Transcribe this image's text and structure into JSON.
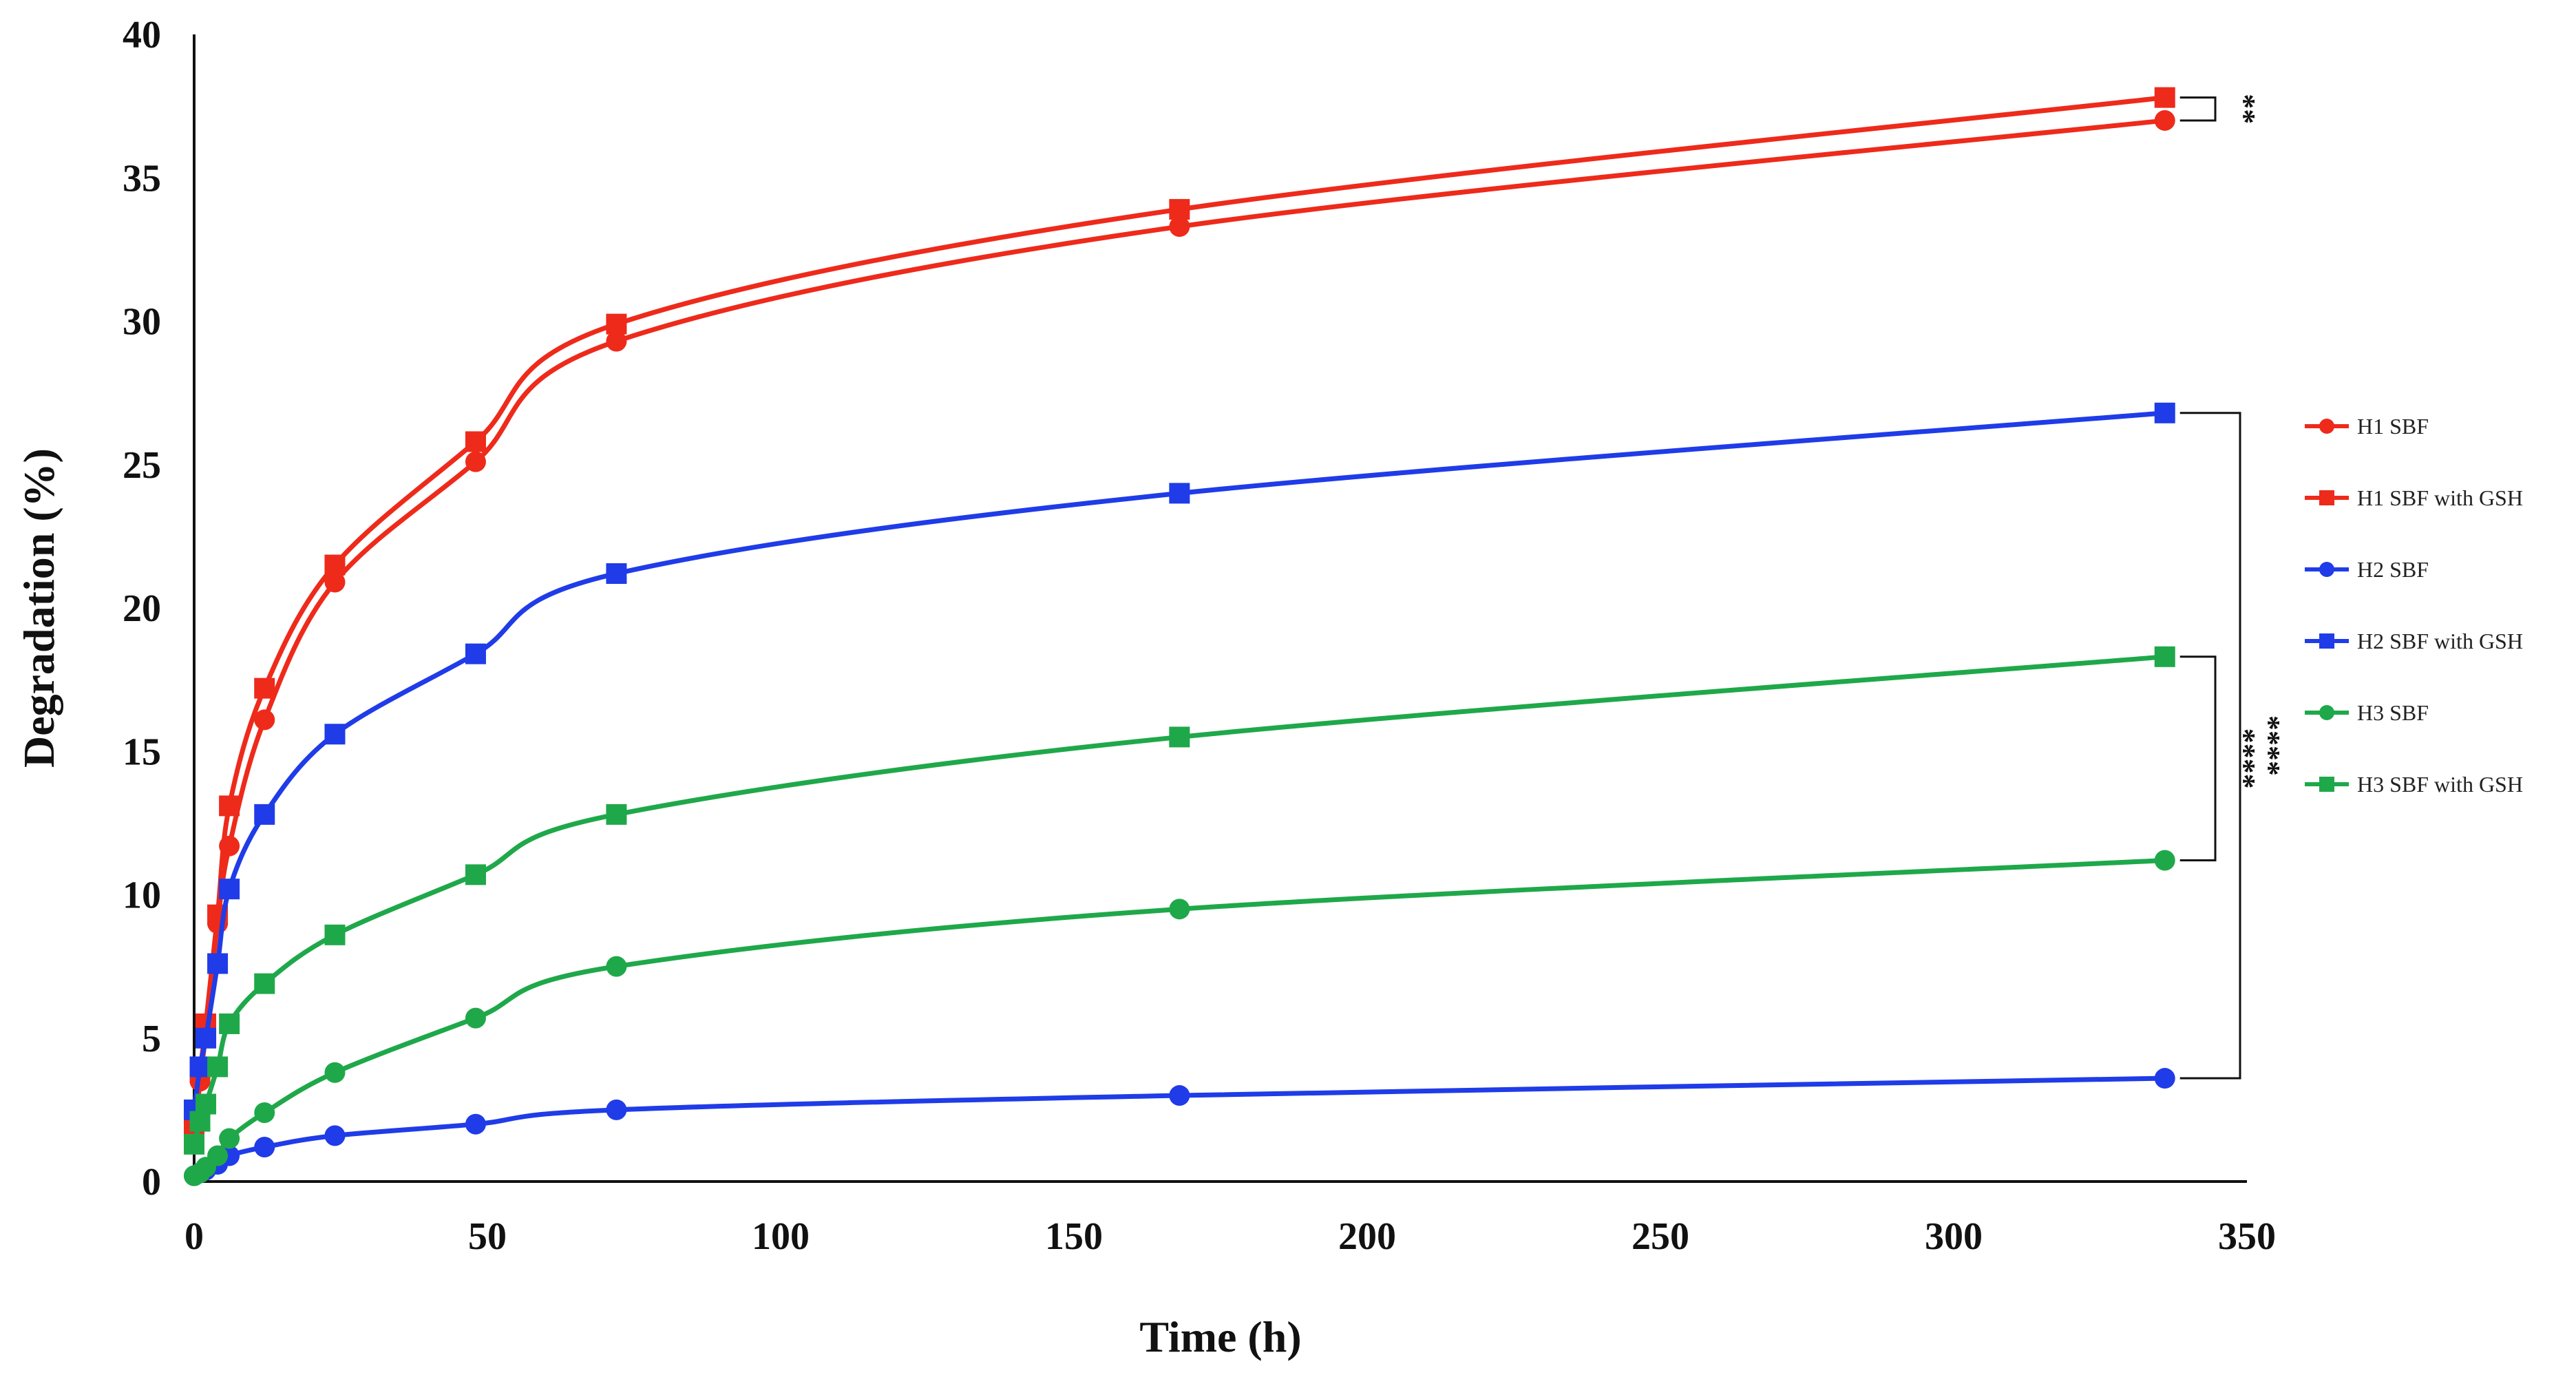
{
  "chart_data": {
    "type": "line",
    "title": "",
    "xlabel": "Time (h)",
    "ylabel": "Degradation (%)",
    "xlim": [
      0,
      350
    ],
    "ylim": [
      0,
      40
    ],
    "xticks": [
      0,
      50,
      100,
      150,
      200,
      250,
      300,
      350
    ],
    "yticks": [
      0,
      5,
      10,
      15,
      20,
      25,
      30,
      35,
      40
    ],
    "xtick_labels": [
      "0",
      "50",
      "100",
      "150",
      "200",
      "250",
      "300",
      "350"
    ],
    "ytick_labels": [
      "0",
      "5",
      "10",
      "15",
      "20",
      "25",
      "30",
      "35",
      "40"
    ],
    "grid": false,
    "legend_position": "right",
    "x": [
      0,
      1,
      2,
      4,
      6,
      12,
      24,
      48,
      72,
      168,
      336
    ],
    "series": [
      {
        "name": "H1 SBF",
        "color": "#ee2a1b",
        "marker": "circle",
        "values": [
          1.6,
          3.5,
          5.2,
          9.0,
          11.7,
          16.1,
          20.9,
          25.1,
          29.3,
          33.3,
          37.0
        ]
      },
      {
        "name": "H1 SBF with GSH",
        "color": "#ee2a1b",
        "marker": "square",
        "values": [
          1.8,
          3.8,
          5.5,
          9.3,
          13.1,
          17.2,
          21.5,
          25.8,
          29.9,
          33.9,
          37.8
        ]
      },
      {
        "name": "H2 SBF",
        "color": "#1f3ce8",
        "marker": "circle",
        "values": [
          0.2,
          0.3,
          0.4,
          0.6,
          0.9,
          1.2,
          1.6,
          2.0,
          2.5,
          3.0,
          3.6
        ]
      },
      {
        "name": "H2 SBF with GSH",
        "color": "#1f3ce8",
        "marker": "square",
        "values": [
          2.5,
          4.0,
          5.0,
          7.6,
          10.2,
          12.8,
          15.6,
          18.4,
          21.2,
          24.0,
          26.8
        ]
      },
      {
        "name": "H3 SBF",
        "color": "#1fa84a",
        "marker": "circle",
        "values": [
          0.2,
          0.3,
          0.5,
          0.9,
          1.5,
          2.4,
          3.8,
          5.7,
          7.5,
          9.5,
          11.2
        ]
      },
      {
        "name": "H3 SBF with GSH",
        "color": "#1fa84a",
        "marker": "square",
        "values": [
          1.3,
          2.1,
          2.7,
          4.0,
          5.5,
          6.9,
          8.6,
          10.7,
          12.8,
          15.5,
          18.3
        ]
      }
    ],
    "annotations": [
      {
        "label": "**",
        "from_series": "H1 SBF with GSH",
        "to_series": "H1 SBF",
        "bracket": "inner"
      },
      {
        "label": "****",
        "from_series": "H2 SBF with GSH",
        "to_series": "H2 SBF",
        "bracket": "outer"
      },
      {
        "label": "****",
        "from_series": "H3 SBF with GSH",
        "to_series": "H3 SBF",
        "bracket": "inner"
      }
    ]
  }
}
